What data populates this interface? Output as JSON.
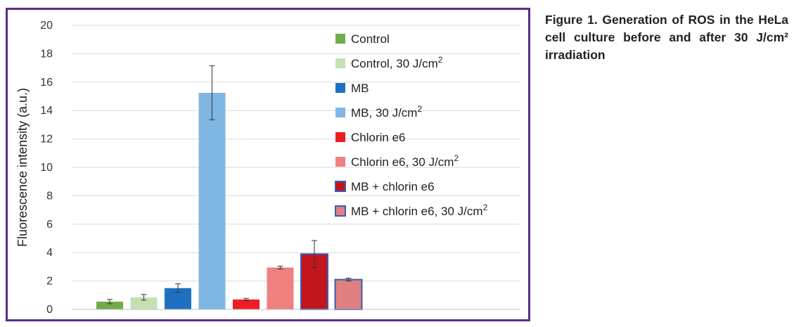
{
  "caption": "Figure 1. Generation of ROS in the HeLa cell culture before and after 30 J/cm² irradiation",
  "chart_data": {
    "type": "bar",
    "title": "",
    "xlabel": "",
    "ylabel": "Fluorescence intensity (a.u.)",
    "ylim": [
      0,
      20
    ],
    "yticks": [
      0,
      2,
      4,
      6,
      8,
      10,
      12,
      14,
      16,
      18,
      20
    ],
    "grid": true,
    "legend_position": "right",
    "categories": [
      "Control",
      "Control, 30 J/cm2",
      "MB",
      "MB, 30 J/cm2",
      "Chlorin e6",
      "Chlorin e6, 30 J/cm2",
      "MB + chlorin e6",
      "MB + chlorin e6, 30 J/cm2"
    ],
    "values": [
      0.55,
      0.85,
      1.5,
      15.25,
      0.7,
      2.95,
      3.9,
      2.1
    ],
    "errors": [
      0.15,
      0.2,
      0.3,
      1.9,
      0.08,
      0.1,
      0.95,
      0.1
    ],
    "colors": [
      "#70ad47",
      "#c5e0b4",
      "#1f70c1",
      "#7fb6e4",
      "#ee1c24",
      "#f08080",
      "#c0161c",
      "#e07f7f"
    ],
    "outlined": [
      false,
      false,
      false,
      false,
      false,
      false,
      true,
      true
    ],
    "outline_color": "#3b5bb5",
    "legend": [
      {
        "base": "Control",
        "sup": ""
      },
      {
        "base": "Control, 30 J/cm",
        "sup": "2"
      },
      {
        "base": "MB",
        "sup": ""
      },
      {
        "base": "MB, 30 J/cm",
        "sup": "2"
      },
      {
        "base": "Chlorin e6",
        "sup": ""
      },
      {
        "base": "Chlorin e6, 30 J/cm",
        "sup": "2"
      },
      {
        "base": "MB + chlorin e6",
        "sup": ""
      },
      {
        "base": "MB + chlorin e6, 30 J/cm",
        "sup": "2"
      }
    ]
  }
}
